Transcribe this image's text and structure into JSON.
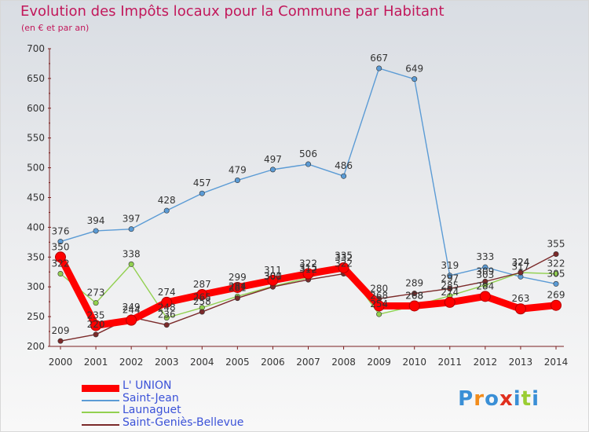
{
  "title": "Evolution des Impôts locaux pour la Commune par Habitant",
  "subtitle": "(en € et par an)",
  "logo_text": "Proxiti",
  "colors": {
    "title": "#c2185b",
    "axis": "#7a1f1f",
    "label": "#333333",
    "L' UNION": "#ff0000",
    "Saint-Jean": "#5b9bd5",
    "Launaguet": "#92d050",
    "Saint-Geniès-Bellevue": "#7b2a2a"
  },
  "chart_data": {
    "type": "line",
    "title": "Evolution des Impôts locaux pour la Commune par Habitant",
    "subtitle": "(en € et par an)",
    "x": [
      "2000",
      "2001",
      "2002",
      "2003",
      "2004",
      "2005",
      "2006",
      "2007",
      "2008",
      "2009",
      "2010",
      "2011",
      "2012",
      "2013",
      "2014"
    ],
    "ylim": [
      200,
      700
    ],
    "yticks": [
      200,
      250,
      300,
      350,
      400,
      450,
      500,
      550,
      600,
      650,
      700
    ],
    "grid": false,
    "legend": "bottom-left",
    "series": [
      {
        "name": "L' UNION",
        "values": [
          350,
          235,
          244,
          274,
          287,
          299,
          311,
          322,
          332,
          268,
          268,
          274,
          284,
          263,
          269
        ]
      },
      {
        "name": "Saint-Jean",
        "values": [
          376,
          394,
          397,
          428,
          457,
          479,
          497,
          506,
          486,
          667,
          649,
          319,
          333,
          317,
          305
        ]
      },
      {
        "name": "Launaguet",
        "values": [
          322,
          273,
          338,
          248,
          265,
          284,
          301,
          315,
          335,
          254,
          268,
          285,
          303,
          324,
          322
        ]
      },
      {
        "name": "Saint-Geniès-Bellevue",
        "values": [
          209,
          220,
          249,
          236,
          258,
          281,
          300,
          312,
          322,
          280,
          289,
          297,
          309,
          324,
          355
        ]
      }
    ]
  }
}
